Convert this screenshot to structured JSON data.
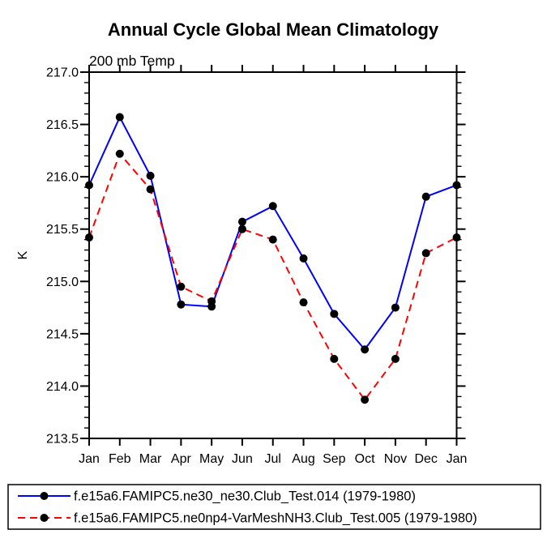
{
  "title": "Annual Cycle Global Mean Climatology",
  "subtitle": "200 mb Temp",
  "ylabel": "K",
  "colors": {
    "axis": "#000000",
    "marker": "#000000",
    "series1": "#0000ff",
    "series2": "#ff0000",
    "background": "#ffffff"
  },
  "chart_data": {
    "type": "line",
    "title": "Annual Cycle Global Mean Climatology",
    "subtitle": "200 mb Temp",
    "xlabel": "",
    "ylabel": "K",
    "x_categories": [
      "Jan",
      "Feb",
      "Mar",
      "Apr",
      "May",
      "Jun",
      "Jul",
      "Aug",
      "Sep",
      "Oct",
      "Nov",
      "Dec",
      "Jan"
    ],
    "ylim": [
      213.5,
      217.0
    ],
    "ytick_step": 0.5,
    "yminor_step": 0.1,
    "ytick_labels": [
      "217.0",
      "216.5",
      "216.0",
      "215.5",
      "215.0",
      "214.5",
      "214.0",
      "213.5"
    ],
    "grid": false,
    "marker": "filled-circle",
    "legend_position": "bottom",
    "series": [
      {
        "name": "f.e15a6.FAMIPC5.ne30_ne30.Club_Test.014 (1979-1980)",
        "color": "#0000ff",
        "style": "solid",
        "values": [
          215.92,
          216.57,
          216.01,
          214.78,
          214.76,
          215.57,
          215.72,
          215.22,
          214.69,
          214.35,
          214.75,
          215.81,
          215.92
        ]
      },
      {
        "name": "f.e15a6.FAMIPC5.ne0np4-VarMeshNH3.Club_Test.005 (1979-1980)",
        "color": "#ff0000",
        "style": "dashed",
        "values": [
          215.42,
          216.22,
          215.88,
          214.95,
          214.81,
          215.5,
          215.4,
          214.8,
          214.26,
          213.87,
          214.26,
          215.27,
          215.42
        ]
      }
    ]
  }
}
